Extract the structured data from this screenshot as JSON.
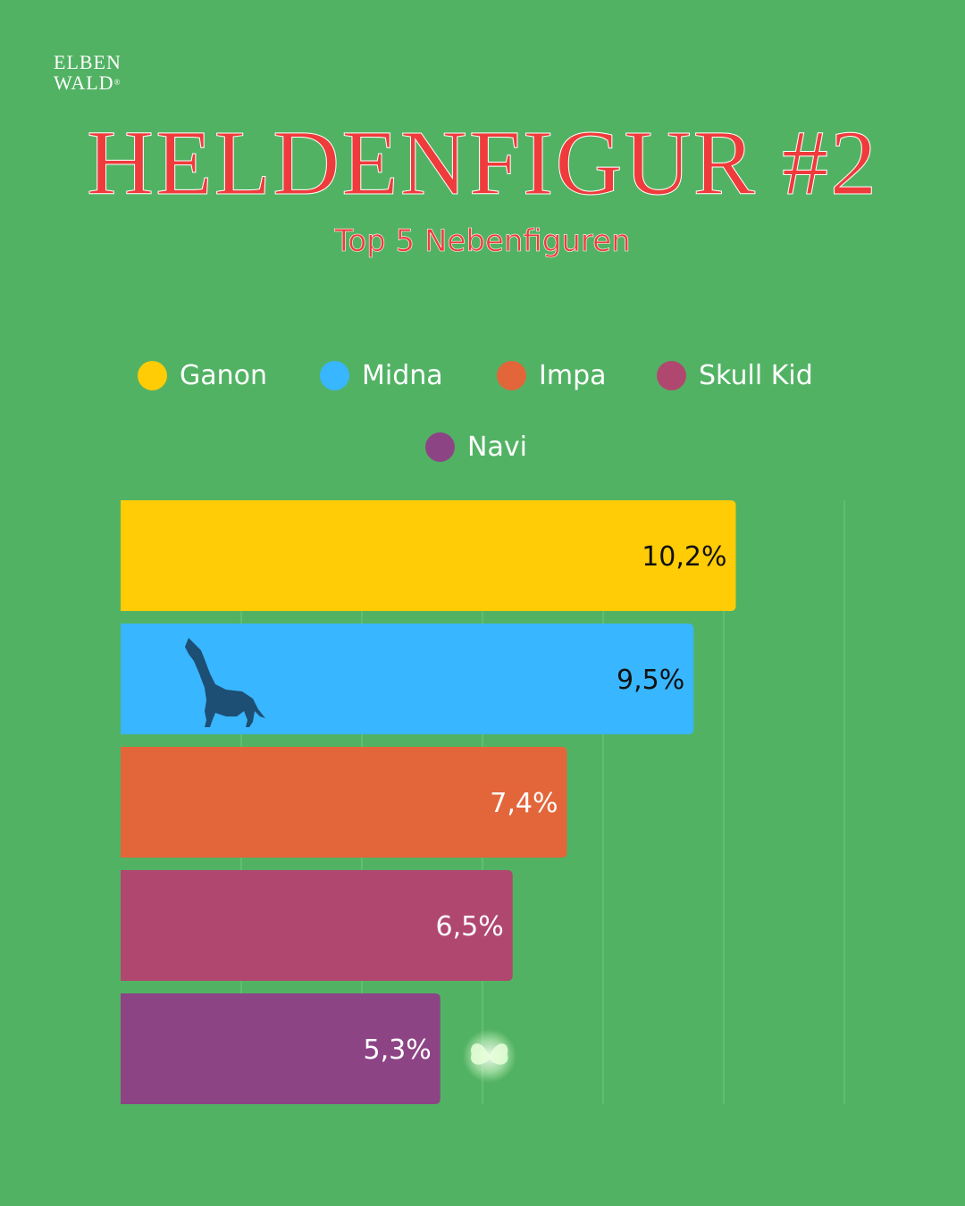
{
  "brand": {
    "line1": "ELBEN",
    "line2": "WALD",
    "mark": "®"
  },
  "header": {
    "title": "HELDENFIGUR #2",
    "subtitle": "Top 5 Nebenfiguren"
  },
  "colors": {
    "background": "#52b264",
    "title": "#ef3b3b",
    "grid": "#6ec27e"
  },
  "chart_data": {
    "type": "bar",
    "orientation": "horizontal",
    "categories": [
      "Ganon",
      "Midna",
      "Impa",
      "Skull Kid",
      "Navi"
    ],
    "values": [
      10.2,
      9.5,
      7.4,
      6.5,
      5.3
    ],
    "value_labels": [
      "10,2%",
      "9,5%",
      "7,4%",
      "6,5%",
      "5,3%"
    ],
    "colors": [
      "#ffcc05",
      "#38b6ff",
      "#e2663a",
      "#b0476f",
      "#8d4485"
    ],
    "label_colors": [
      "#111111",
      "#111111",
      "#ffffff",
      "#ffffff",
      "#ffffff"
    ],
    "xlim": [
      0,
      12
    ],
    "grid": true,
    "legend": "top",
    "icons": [
      "",
      "wolf-icon",
      "",
      "",
      "fairy-icon"
    ]
  }
}
